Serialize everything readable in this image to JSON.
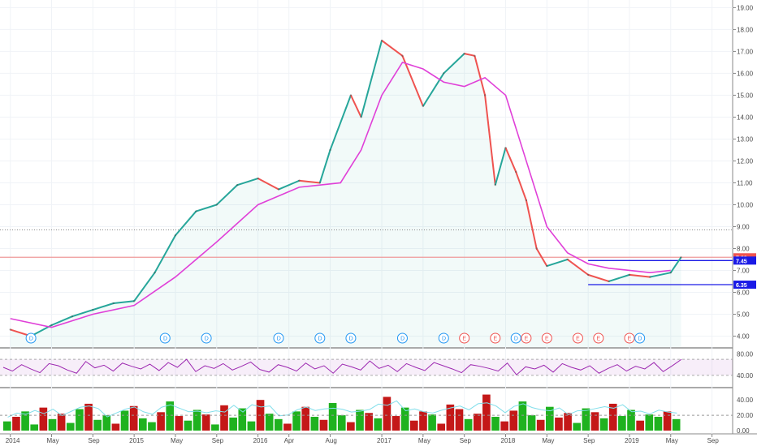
{
  "chart_data": {
    "type": "line",
    "main_panel": {
      "series": [
        {
          "role": "price",
          "kind": "line",
          "color_up": "#26a69a",
          "color_down": "#ef5350",
          "x": [
            "2014-01",
            "2014-03",
            "2014-05",
            "2014-07",
            "2014-09",
            "2014-11",
            "2015-01",
            "2015-03",
            "2015-05",
            "2015-07",
            "2015-09",
            "2015-11",
            "2016-01",
            "2016-03",
            "2016-05",
            "2016-07",
            "2016-08",
            "2016-10",
            "2016-11",
            "2017-01",
            "2017-03",
            "2017-05",
            "2017-07",
            "2017-09",
            "2017-10",
            "2017-11",
            "2017-12",
            "2018-01",
            "2018-02",
            "2018-03",
            "2018-04",
            "2018-05",
            "2018-07",
            "2018-09",
            "2018-11",
            "2019-01",
            "2019-03",
            "2019-05",
            "2019-06"
          ],
          "values": [
            4.3,
            4.0,
            4.5,
            4.9,
            5.2,
            5.5,
            5.6,
            6.9,
            8.6,
            9.7,
            10.0,
            10.9,
            11.2,
            10.7,
            11.1,
            11.0,
            12.5,
            15.0,
            14.0,
            17.5,
            16.8,
            14.5,
            16.0,
            16.9,
            16.8,
            15.0,
            10.9,
            12.6,
            11.5,
            10.2,
            8.0,
            7.2,
            7.5,
            6.8,
            6.5,
            6.8,
            6.7,
            6.9,
            7.6
          ]
        },
        {
          "role": "moving-average",
          "kind": "line",
          "color": "#e040d8",
          "x": [
            "2014-01",
            "2014-05",
            "2014-09",
            "2015-01",
            "2015-05",
            "2015-09",
            "2016-01",
            "2016-05",
            "2016-09",
            "2016-11",
            "2017-01",
            "2017-03",
            "2017-05",
            "2017-07",
            "2017-09",
            "2017-11",
            "2018-01",
            "2018-03",
            "2018-05",
            "2018-07",
            "2018-09",
            "2018-11",
            "2019-01",
            "2019-03",
            "2019-05"
          ],
          "values": [
            4.8,
            4.4,
            5.0,
            5.4,
            6.7,
            8.3,
            10.0,
            10.8,
            11.0,
            12.5,
            15.0,
            16.5,
            16.2,
            15.6,
            15.4,
            15.8,
            15.0,
            12.0,
            9.0,
            7.8,
            7.3,
            7.1,
            7.0,
            6.9,
            7.0
          ]
        }
      ],
      "y_ticks": [
        "19.00",
        "18.00",
        "17.00",
        "16.00",
        "15.00",
        "14.00",
        "13.00",
        "12.00",
        "11.00",
        "10.00",
        "9.00",
        "8.00",
        "7.00",
        "6.00",
        "5.00",
        "4.00"
      ],
      "ylim": [
        3.5,
        19.2
      ],
      "price_labels": [
        {
          "value": 7.6,
          "text": "7.60",
          "color": "#ef5350"
        },
        {
          "value": 7.45,
          "text": "7.45",
          "color": "#1a1ae6"
        },
        {
          "value": 6.35,
          "text": "6.35",
          "color": "#1a1ae6"
        }
      ],
      "reference_lines": [
        {
          "value": 8.85,
          "style": "dotted",
          "color": "#888888"
        },
        {
          "value": 7.6,
          "style": "solid",
          "color": "#ef9a9a"
        },
        {
          "value": 7.45,
          "style": "solid",
          "color": "#1a1ae6",
          "x_from": "2018-09"
        },
        {
          "value": 6.35,
          "style": "solid",
          "color": "#1a1ae6",
          "x_from": "2018-09"
        }
      ],
      "events": [
        {
          "x": "2014-03",
          "label": "D"
        },
        {
          "x": "2015-04",
          "label": "D"
        },
        {
          "x": "2015-08",
          "label": "D"
        },
        {
          "x": "2016-03",
          "label": "D"
        },
        {
          "x": "2016-07",
          "label": "D"
        },
        {
          "x": "2016-10",
          "label": "D"
        },
        {
          "x": "2017-03",
          "label": "D"
        },
        {
          "x": "2017-07",
          "label": "D"
        },
        {
          "x": "2017-09",
          "label": "E"
        },
        {
          "x": "2017-12",
          "label": "E"
        },
        {
          "x": "2018-02",
          "label": "D"
        },
        {
          "x": "2018-03",
          "label": "E"
        },
        {
          "x": "2018-05",
          "label": "E"
        },
        {
          "x": "2018-08",
          "label": "E"
        },
        {
          "x": "2018-10",
          "label": "E"
        },
        {
          "x": "2019-01",
          "label": "E"
        },
        {
          "x": "2019-02",
          "label": "D"
        }
      ]
    },
    "rsi_panel": {
      "y_ticks": [
        "80.00",
        "40.00"
      ],
      "ylim": [
        20,
        90
      ],
      "band": [
        40,
        70
      ],
      "color": "#9c27b0",
      "values": [
        55,
        48,
        60,
        52,
        45,
        62,
        58,
        50,
        44,
        66,
        54,
        59,
        48,
        63,
        57,
        52,
        61,
        49,
        64,
        55,
        70,
        47,
        58,
        53,
        62,
        50,
        57,
        65,
        51,
        46,
        60,
        55,
        48,
        63,
        52,
        58,
        44,
        61,
        56,
        50,
        67,
        53,
        59,
        47,
        62,
        55,
        49,
        64,
        58,
        52,
        45,
        60,
        57,
        53,
        48,
        63,
        41,
        56,
        52,
        59,
        46,
        62,
        55,
        50,
        58,
        44,
        53,
        60,
        48,
        57,
        52,
        64,
        47,
        58,
        70
      ]
    },
    "volume_panel": {
      "y_ticks": [
        "40.00",
        "20.00",
        "0.00"
      ],
      "ylim": [
        0,
        55
      ],
      "color_up": "#1fb21f",
      "color_down": "#c41818",
      "ma_color": "#80deea",
      "values": [
        12,
        18,
        25,
        8,
        30,
        15,
        22,
        10,
        28,
        35,
        14,
        20,
        9,
        26,
        32,
        16,
        11,
        24,
        38,
        19,
        13,
        27,
        21,
        8,
        33,
        17,
        29,
        12,
        40,
        22,
        15,
        9,
        25,
        31,
        18,
        14,
        36,
        20,
        11,
        27,
        23,
        16,
        44,
        19,
        30,
        13,
        25,
        21,
        9,
        34,
        28,
        15,
        22,
        47,
        18,
        12,
        26,
        38,
        20,
        14,
        31,
        17,
        23,
        10,
        29,
        24,
        16,
        35,
        19,
        27,
        13,
        21,
        18,
        25,
        15
      ],
      "ups": [
        1,
        0,
        1,
        1,
        0,
        1,
        0,
        1,
        1,
        0,
        1,
        1,
        0,
        1,
        0,
        1,
        1,
        0,
        1,
        0,
        1,
        1,
        0,
        1,
        0,
        1,
        1,
        1,
        0,
        1,
        1,
        0,
        1,
        0,
        1,
        0,
        1,
        1,
        0,
        1,
        0,
        1,
        0,
        0,
        1,
        0,
        0,
        1,
        0,
        0,
        0,
        1,
        0,
        0,
        1,
        0,
        0,
        1,
        1,
        0,
        1,
        0,
        0,
        1,
        1,
        0,
        1,
        0,
        1,
        1,
        0,
        1,
        1,
        0,
        1
      ]
    },
    "x_ticks": [
      "2014",
      "May",
      "Sep",
      "2015",
      "May",
      "Sep",
      "2016",
      "Apr",
      "Aug",
      "2017",
      "May",
      "Sep",
      "2018",
      "May",
      "Sep",
      "2019",
      "May",
      "Sep"
    ],
    "x_tick_dates": [
      "2014-01",
      "2014-05",
      "2014-09",
      "2015-01",
      "2015-05",
      "2015-09",
      "2016-01",
      "2016-04",
      "2016-08",
      "2017-01",
      "2017-05",
      "2017-09",
      "2018-01",
      "2018-05",
      "2018-09",
      "2019-01",
      "2019-05",
      "2019-09"
    ],
    "xlim": [
      "2013-12",
      "2019-11"
    ],
    "grid": true,
    "legend": "none"
  }
}
